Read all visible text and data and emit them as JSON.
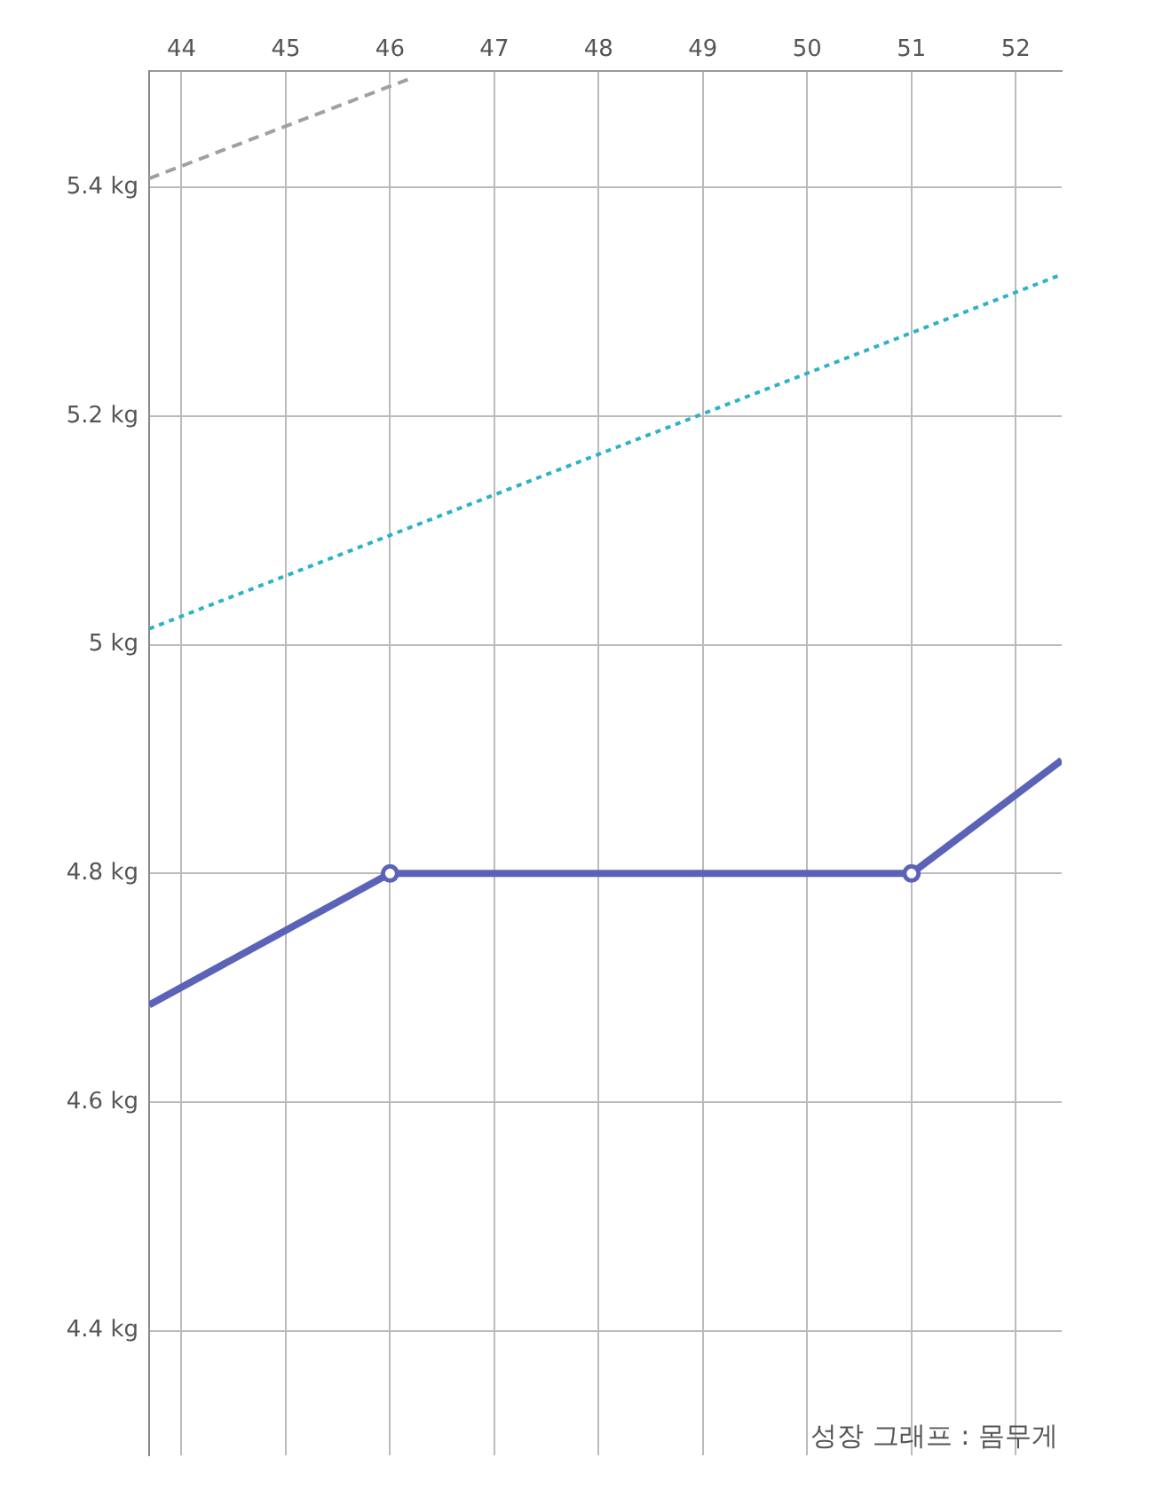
{
  "chart_data": {
    "type": "line",
    "x": [
      43.69,
      46,
      51,
      52.44
    ],
    "series": [
      {
        "color": "#a0a0a0",
        "line_style": "dashed",
        "marker": "none",
        "x": [
          43.69,
          46.21
        ],
        "values": [
          5.408,
          5.496
        ]
      },
      {
        "color": "#2fb2c4",
        "line_style": "dotted",
        "marker": "none",
        "x": [
          43.69,
          52.44
        ],
        "values": [
          5.014,
          5.324
        ]
      },
      {
        "color": "#5a63b8",
        "line_style": "solid",
        "marker": "circle",
        "values": [
          4.685,
          4.8,
          4.8,
          4.899
        ]
      }
    ],
    "xlim": [
      43.69,
      52.44
    ],
    "xticks": [
      44,
      45,
      46,
      47,
      48,
      49,
      50,
      51,
      52
    ],
    "ylim": [
      4.291,
      5.502
    ],
    "yticks": [
      {
        "value": 4.4,
        "label": "4.4 kg"
      },
      {
        "value": 4.6,
        "label": "4.6 kg"
      },
      {
        "value": 4.8,
        "label": "4.8 kg"
      },
      {
        "value": 5,
        "label": "5 kg"
      },
      {
        "value": 5.2,
        "label": "5.2 kg"
      },
      {
        "value": 5.4,
        "label": "5.4 kg"
      }
    ],
    "grid": true,
    "annotations": [
      "성장 그래프 : 몸무게"
    ]
  }
}
